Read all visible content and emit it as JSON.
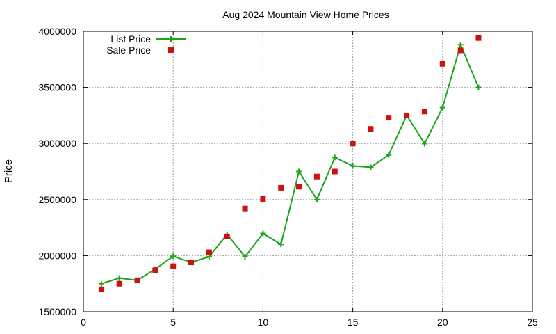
{
  "chart_data": {
    "type": "line",
    "title": "Aug 2024 Mountain View Home Prices",
    "xlabel": "",
    "ylabel": "Price",
    "xlim": [
      0,
      25
    ],
    "ylim": [
      1500000,
      4000000
    ],
    "x_ticks": [
      0,
      5,
      10,
      15,
      20,
      25
    ],
    "y_ticks": [
      1500000,
      2000000,
      2500000,
      3000000,
      3500000,
      4000000
    ],
    "grid": true,
    "legend_position": "top-left",
    "series": [
      {
        "name": "List Price",
        "style": "line-with-plus-markers",
        "color": "#1aa51a",
        "x": [
          1,
          2,
          3,
          4,
          5,
          6,
          7,
          8,
          9,
          10,
          11,
          12,
          13,
          14,
          15,
          16,
          17,
          18,
          19,
          20,
          21,
          22
        ],
        "values": [
          1750000,
          1800000,
          1780000,
          1880000,
          1995000,
          1940000,
          1990000,
          2190000,
          1990000,
          2198000,
          2100000,
          2750000,
          2500000,
          2875000,
          2800000,
          2788000,
          2898000,
          3250000,
          2998000,
          3320000,
          3880000,
          3500000
        ]
      },
      {
        "name": "Sale Price",
        "style": "square-markers",
        "color": "#cc1111",
        "x": [
          1,
          2,
          3,
          4,
          5,
          6,
          7,
          8,
          9,
          10,
          11,
          12,
          13,
          14,
          15,
          16,
          17,
          18,
          19,
          20,
          21,
          22
        ],
        "values": [
          1700000,
          1750000,
          1780000,
          1870000,
          1905000,
          1940000,
          2030000,
          2170000,
          2420000,
          2505000,
          2605000,
          2615000,
          2705000,
          2750000,
          3000000,
          3130000,
          3230000,
          3250000,
          3285000,
          3710000,
          3830000,
          3940000
        ]
      }
    ]
  }
}
